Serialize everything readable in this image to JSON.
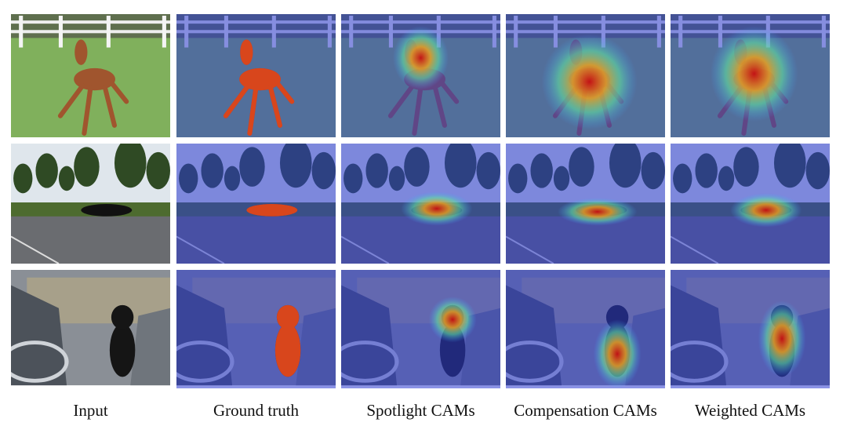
{
  "columns": [
    "Input",
    "Ground truth",
    "Spotlight CAMs",
    "Compensation CAMs",
    "Weighted CAMs"
  ]
}
